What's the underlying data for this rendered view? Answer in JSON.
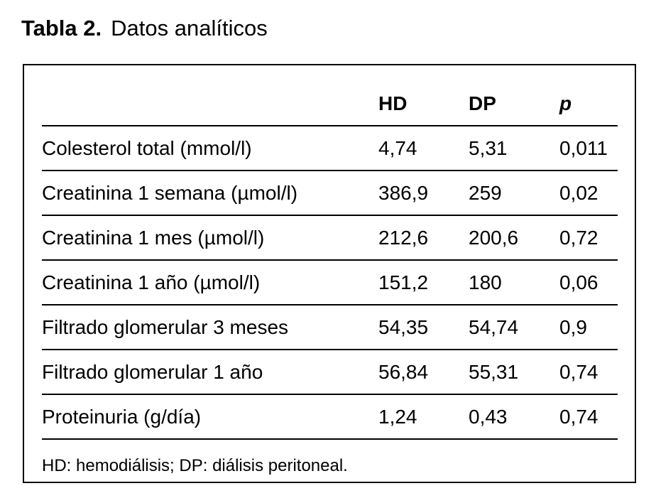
{
  "page": {
    "title_label": "Tabla 2.",
    "title_text": "Datos analíticos"
  },
  "table": {
    "headers": {
      "label": "",
      "hd": "HD",
      "dp": "DP",
      "p": "p"
    },
    "rows": [
      {
        "label": "Colesterol total (mmol/l)",
        "hd": "4,74",
        "dp": "5,31",
        "p": "0,011"
      },
      {
        "label": "Creatinina 1 semana (µmol/l)",
        "hd": "386,9",
        "dp": "259",
        "p": "0,02"
      },
      {
        "label": "Creatinina 1 mes (µmol/l)",
        "hd": "212,6",
        "dp": "200,6",
        "p": "0,72"
      },
      {
        "label": "Creatinina 1 año (µmol/l)",
        "hd": "151,2",
        "dp": "180",
        "p": "0,06"
      },
      {
        "label": "Filtrado glomerular 3 meses",
        "hd": "54,35",
        "dp": "54,74",
        "p": "0,9"
      },
      {
        "label": "Filtrado glomerular 1 año",
        "hd": "56,84",
        "dp": "55,31",
        "p": "0,74"
      },
      {
        "label": "Proteinuria (g/día)",
        "hd": "1,24",
        "dp": "0,43",
        "p": "0,74"
      }
    ],
    "footnote": "HD: hemodiálisis; DP: diálisis peritoneal."
  },
  "colors": {
    "text": "#000000",
    "background": "#ffffff",
    "rule": "#000000"
  }
}
